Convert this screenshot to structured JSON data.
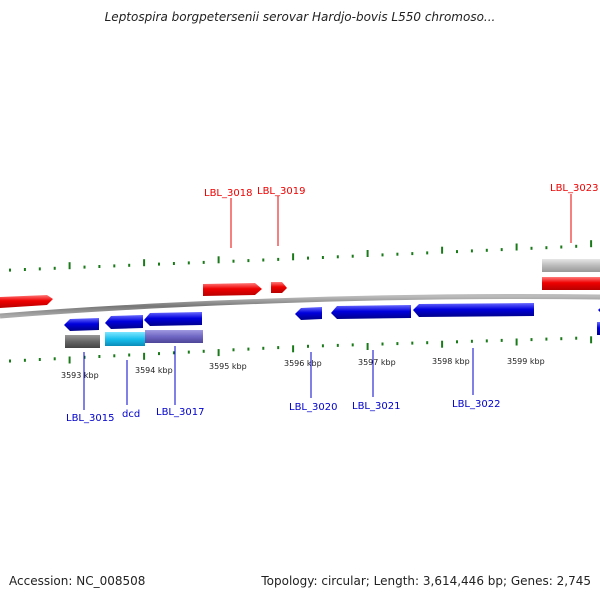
{
  "title": "Leptospira borgpetersenii serovar Hardjo-bovis L550 chromoso...",
  "footer": {
    "accession": "Accession: NC_008508",
    "summary": "Topology: circular; Length: 3,614,446 bp; Genes: 2,745"
  },
  "ticks": [
    "3593 kbp",
    "3594 kbp",
    "3595 kbp",
    "3596 kbp",
    "3597 kbp",
    "3598 kbp",
    "3599 kbp"
  ],
  "labels": {
    "forward": [
      "LBL_3018",
      "LBL_3019",
      "LBL_3023"
    ],
    "reverse": [
      "LBL_3015",
      "dcd",
      "LBL_3017",
      "LBL_3020",
      "LBL_3021",
      "LBL_3022"
    ]
  },
  "colors": {
    "forward_gene": "#ee0000",
    "reverse_gene": "#0000dd",
    "backbone": "#888888",
    "tick": "#1a7a1a"
  }
}
